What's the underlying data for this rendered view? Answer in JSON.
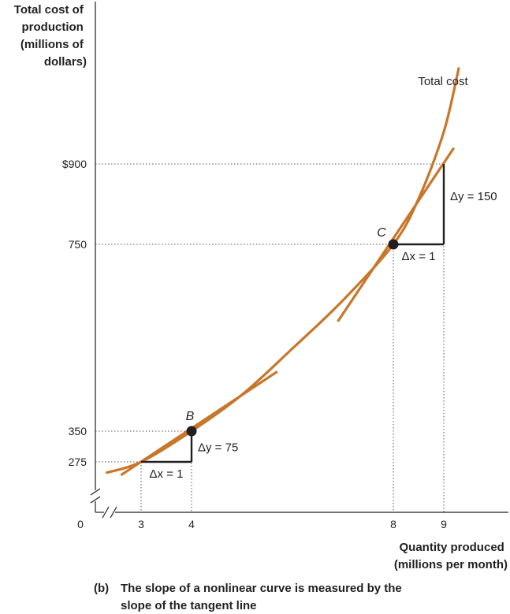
{
  "chart_data": {
    "type": "line",
    "ylabel_lines": [
      "Total cost of",
      "production",
      "(millions of",
      "dollars)"
    ],
    "xlabel_lines": [
      "Quantity produced",
      "(millions per month)"
    ],
    "caption_prefix": "(b)",
    "caption_lines": [
      "The slope of a nonlinear curve is measured by the",
      "slope of the tangent line"
    ],
    "series": [
      {
        "name": "Total cost",
        "color": "#c8762a",
        "x": [
          2.3,
          3,
          4,
          5,
          6,
          7,
          8,
          8.5,
          9,
          9.3
        ],
        "y": [
          250,
          275,
          350,
          428,
          527,
          630,
          750,
          835,
          960,
          1080
        ]
      }
    ],
    "tangents": [
      {
        "point": "B",
        "x": 4,
        "y": 350,
        "slope": 75,
        "from_x": 2.6,
        "to_x": 5.7
      },
      {
        "point": "C",
        "x": 8,
        "y": 750,
        "slope": 150,
        "from_x": 6.9,
        "to_x": 9.2
      }
    ],
    "points": [
      {
        "label": "B",
        "x": 4,
        "y": 350
      },
      {
        "label": "C",
        "x": 8,
        "y": 750
      }
    ],
    "triangles": [
      {
        "x1": 3,
        "x2": 4,
        "y1": 275,
        "y2": 350,
        "dx_label": "Δx = 1",
        "dy_label": "Δy = 75"
      },
      {
        "x1": 8,
        "x2": 9,
        "y1": 750,
        "y2": 900,
        "dx_label": "Δx = 1",
        "dy_label": "Δy = 150"
      }
    ],
    "x_ticks": [
      {
        "value": 3,
        "label": "3"
      },
      {
        "value": 4,
        "label": "4"
      },
      {
        "value": 8,
        "label": "8"
      },
      {
        "value": 9,
        "label": "9"
      }
    ],
    "y_ticks": [
      {
        "value": 275,
        "label": "275"
      },
      {
        "value": 350,
        "label": "350"
      },
      {
        "value": 750,
        "label": "750"
      },
      {
        "value": 900,
        "label": "$900"
      }
    ],
    "origin_label": "0",
    "curve_label": "Total cost",
    "axis_breaks": true,
    "colors": {
      "curve": "#c8762a",
      "ink": "#231f20",
      "guide": "#555555"
    }
  }
}
